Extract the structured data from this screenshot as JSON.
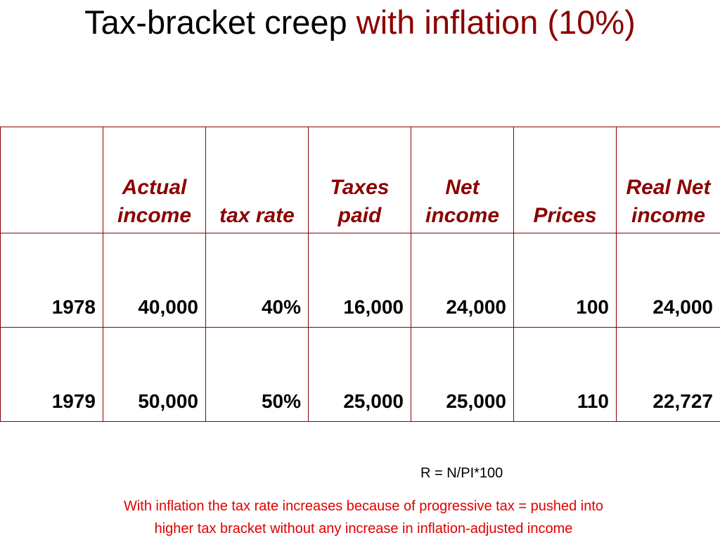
{
  "title": {
    "main": "Tax-bracket creep ",
    "accent": "with inflation (10%)"
  },
  "table": {
    "headers": [
      "",
      "Actual income",
      "tax rate",
      "Taxes paid",
      "Net income",
      "Prices",
      "Real Net income"
    ],
    "rows": [
      [
        "1978",
        "40,000",
        "40%",
        "16,000",
        "24,000",
        "100",
        "24,000"
      ],
      [
        "1979",
        "50,000",
        "50%",
        "25,000",
        "25,000",
        "110",
        "22,727"
      ]
    ]
  },
  "formula": "R = N/PI*100",
  "note": {
    "line1": "With inflation the tax rate increases because of progressive tax = pushed into",
    "line2": "higher tax bracket without any increase in inflation-adjusted income"
  },
  "colors": {
    "accent": "#8b0000",
    "note": "#e00000",
    "border": "#8b0000"
  }
}
